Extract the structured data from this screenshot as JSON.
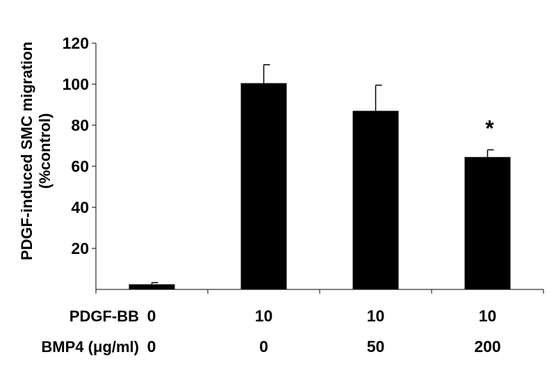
{
  "chart_data": {
    "type": "bar",
    "title": "",
    "ylabel_line1": "PDGF-induced SMC migration",
    "ylabel_line2": "(%control)",
    "ylim": [
      0,
      120
    ],
    "yticks": [
      "20",
      "40",
      "60",
      "80",
      "100",
      "120"
    ],
    "categories": [
      "0/0",
      "10/0",
      "10/50",
      "10/200"
    ],
    "values": [
      2.5,
      100.5,
      87,
      64.5
    ],
    "errors": [
      0.8,
      9,
      12.5,
      3.5
    ],
    "annotations": [
      "",
      "",
      "",
      "*"
    ],
    "bar_color": "#000000",
    "grid": false,
    "table": {
      "rows": [
        {
          "label": "PDGF-BB",
          "values": [
            "0",
            "10",
            "10",
            "10"
          ]
        },
        {
          "label": "BMP4 (μg/ml)",
          "values": [
            "0",
            "0",
            "50",
            "200"
          ]
        }
      ]
    }
  }
}
